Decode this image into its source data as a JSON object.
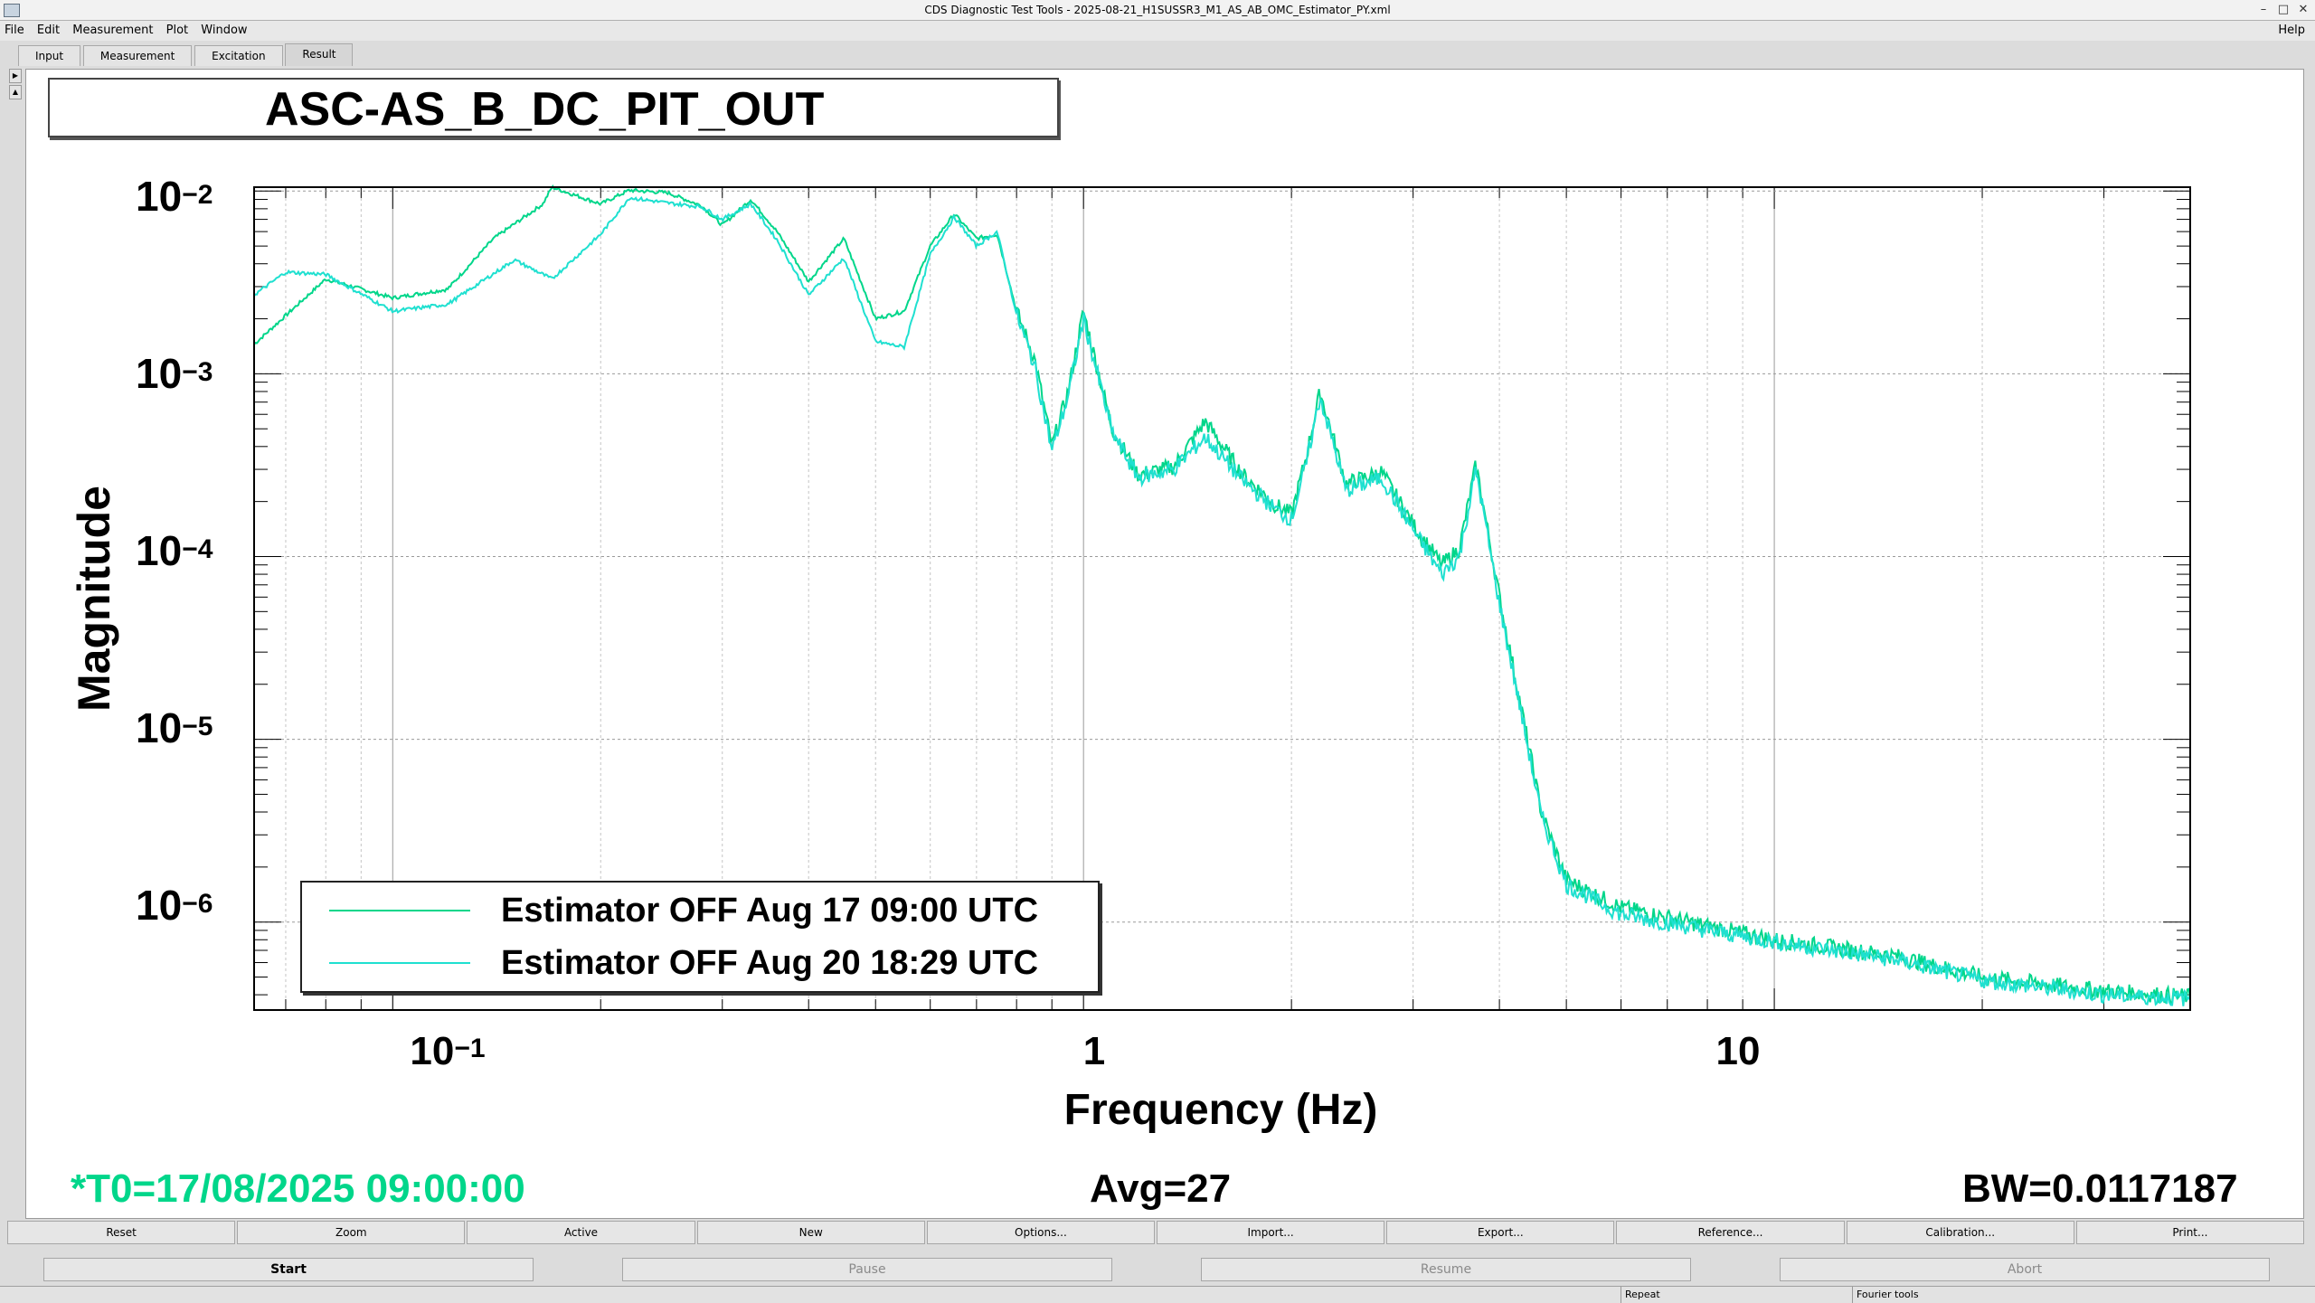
{
  "window": {
    "title": "CDS Diagnostic Test Tools - 2025-08-21_H1SUSSR3_M1_AS_AB_OMC_Estimator_PY.xml"
  },
  "menu": {
    "items": [
      "File",
      "Edit",
      "Measurement",
      "Plot",
      "Window"
    ],
    "help": "Help"
  },
  "tabs": [
    "Input",
    "Measurement",
    "Excitation",
    "Result"
  ],
  "plot": {
    "title": "ASC-AS_B_DC_PIT_OUT",
    "ylabel": "Magnitude",
    "xlabel": "Frequency (Hz)",
    "yticks": [
      {
        "base": "10",
        "exp": "−2"
      },
      {
        "base": "10",
        "exp": "−3"
      },
      {
        "base": "10",
        "exp": "−4"
      },
      {
        "base": "10",
        "exp": "−5"
      },
      {
        "base": "10",
        "exp": "−6"
      }
    ],
    "xticks": [
      {
        "base": "10",
        "exp": "−1"
      },
      {
        "base": "1",
        "exp": ""
      },
      {
        "base": "10",
        "exp": ""
      }
    ],
    "legend": [
      {
        "label": "Estimator OFF Aug 17 09:00 UTC",
        "color": "#00d68a"
      },
      {
        "label": "Estimator OFF Aug 20 18:29 UTC",
        "color": "#1fe0d0"
      }
    ]
  },
  "chart_data": {
    "type": "line",
    "xscale": "log",
    "yscale": "log",
    "xlim": [
      0.063,
      40
    ],
    "ylim": [
      3.3e-07,
      0.0105
    ],
    "grid": true,
    "xlabel": "Frequency (Hz)",
    "ylabel": "Magnitude",
    "title": "ASC-AS_B_DC_PIT_OUT",
    "legend_position": "bottom-left",
    "series": [
      {
        "name": "Estimator OFF Aug 17 09:00 UTC",
        "color": "#00d68a",
        "x": [
          0.063,
          0.08,
          0.1,
          0.12,
          0.14,
          0.165,
          0.17,
          0.2,
          0.22,
          0.25,
          0.28,
          0.3,
          0.33,
          0.36,
          0.4,
          0.45,
          0.5,
          0.55,
          0.6,
          0.65,
          0.7,
          0.75,
          0.8,
          0.85,
          0.9,
          0.95,
          1.0,
          1.1,
          1.2,
          1.35,
          1.5,
          1.7,
          1.9,
          2.0,
          2.1,
          2.2,
          2.4,
          2.7,
          3.0,
          3.3,
          3.5,
          3.7,
          4.0,
          4.3,
          4.6,
          5.0,
          6.0,
          8.0,
          10,
          15,
          20,
          30,
          40
        ],
        "y": [
          0.00145,
          0.0033,
          0.0026,
          0.0029,
          0.0055,
          0.0085,
          0.0105,
          0.0085,
          0.0101,
          0.0098,
          0.0083,
          0.0065,
          0.009,
          0.006,
          0.0032,
          0.0055,
          0.002,
          0.0022,
          0.005,
          0.0075,
          0.0055,
          0.0058,
          0.0022,
          0.0012,
          0.0004,
          0.0008,
          0.0022,
          0.0005,
          0.00028,
          0.00031,
          0.00055,
          0.00028,
          0.00019,
          0.00017,
          0.00035,
          0.0008,
          0.00025,
          0.00029,
          0.00015,
          9e-05,
          0.00011,
          0.00032,
          6e-05,
          1.5e-05,
          4e-06,
          1.7e-06,
          1.2e-06,
          9.5e-07,
          8e-07,
          6.5e-07,
          5e-07,
          4.2e-07,
          3.9e-07
        ]
      },
      {
        "name": "Estimator OFF Aug 20 18:29 UTC",
        "color": "#1fe0d0",
        "x": [
          0.063,
          0.07,
          0.08,
          0.1,
          0.12,
          0.15,
          0.17,
          0.2,
          0.22,
          0.25,
          0.28,
          0.3,
          0.33,
          0.36,
          0.4,
          0.45,
          0.5,
          0.55,
          0.6,
          0.65,
          0.7,
          0.75,
          0.8,
          0.85,
          0.9,
          0.95,
          1.0,
          1.1,
          1.2,
          1.35,
          1.5,
          1.7,
          1.9,
          2.0,
          2.1,
          2.2,
          2.4,
          2.7,
          3.0,
          3.3,
          3.5,
          3.7,
          4.0,
          4.3,
          4.6,
          5.0,
          6.0,
          8.0,
          10,
          15,
          20,
          30,
          40
        ],
        "y": [
          0.0027,
          0.0036,
          0.0035,
          0.0022,
          0.0024,
          0.0042,
          0.0033,
          0.0058,
          0.0092,
          0.0086,
          0.0082,
          0.007,
          0.0085,
          0.0054,
          0.0027,
          0.0043,
          0.0015,
          0.0014,
          0.0045,
          0.0072,
          0.005,
          0.006,
          0.0021,
          0.0011,
          0.00038,
          0.00075,
          0.002,
          0.00048,
          0.00027,
          0.0003,
          0.00045,
          0.00026,
          0.00018,
          0.00016,
          0.00032,
          0.00075,
          0.00023,
          0.00027,
          0.00014,
          8e-05,
          0.0001,
          0.0003,
          5.5e-05,
          1.4e-05,
          3.8e-06,
          1.6e-06,
          1.1e-06,
          9e-07,
          7.8e-07,
          6.2e-07,
          4.8e-07,
          4e-07,
          3.8e-07
        ]
      }
    ]
  },
  "status": {
    "t0": "*T0=17/08/2025 09:00:00",
    "avg": "Avg=27",
    "bw": "BW=0.0117187",
    "t0_color": "#00d68a"
  },
  "buttons_row1": [
    "Reset",
    "Zoom",
    "Active",
    "New",
    "Options...",
    "Import...",
    "Export...",
    "Reference...",
    "Calibration...",
    "Print..."
  ],
  "buttons_row2": [
    {
      "label": "Start",
      "enabled": true
    },
    {
      "label": "Pause",
      "enabled": false
    },
    {
      "label": "Resume",
      "enabled": false
    },
    {
      "label": "Abort",
      "enabled": false
    }
  ],
  "statusbar": [
    "Repeat",
    "Fourier tools"
  ]
}
